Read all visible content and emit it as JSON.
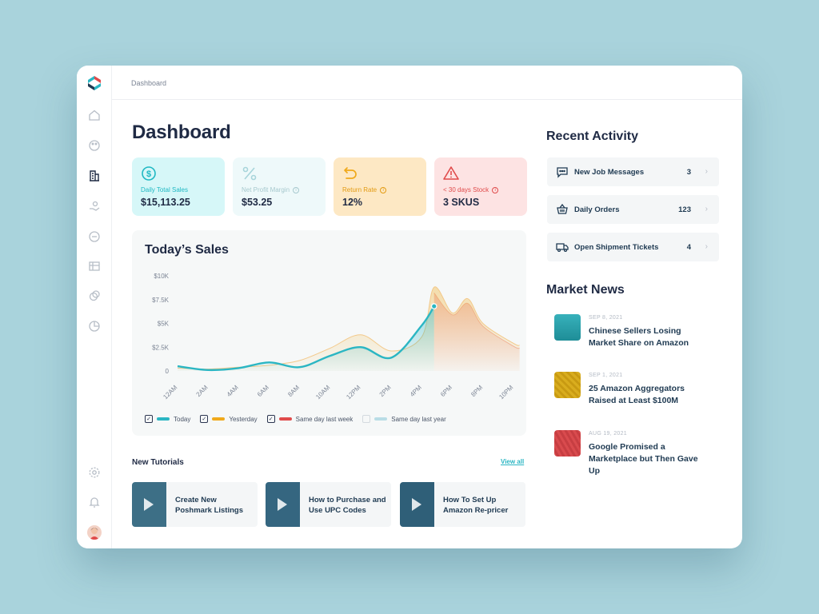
{
  "breadcrumb": "Dashboard",
  "page_title": "Dashboard",
  "kpis": [
    {
      "label": "Daily Total Sales",
      "value": "$15,113.25",
      "icon": "dollar-circle-icon",
      "bg": "#d6f7f8",
      "accent": "#1fb8c3"
    },
    {
      "label": "Net Profit Margin",
      "value": "$53.25",
      "icon": "percent-icon",
      "bg": "#eef9fa",
      "accent": "#a7d4da"
    },
    {
      "label": "Return Rate",
      "value": "12%",
      "icon": "return-arrow-icon",
      "bg": "#fde8c4",
      "accent": "#f0a91b"
    },
    {
      "label": "< 30 days Stock",
      "value": "3 SKUS",
      "icon": "warning-icon",
      "bg": "#fde3e3",
      "accent": "#e04b4b"
    }
  ],
  "sales": {
    "title": "Today’s Sales",
    "legend": [
      {
        "label": "Today",
        "checked": true,
        "color": "#2bb6c3"
      },
      {
        "label": "Yesterday",
        "checked": true,
        "color": "#f0a91b"
      },
      {
        "label": "Same day last week",
        "checked": true,
        "color": "#e04b4b"
      },
      {
        "label": "Same day last year",
        "checked": false,
        "color": "#b9dde6"
      }
    ]
  },
  "chart_data": {
    "type": "area",
    "title": "Today’s Sales",
    "categories": [
      "12AM",
      "2AM",
      "4AM",
      "6AM",
      "8AM",
      "10AM",
      "12PM",
      "2PM",
      "4PM",
      "6PM",
      "8PM",
      "10PM"
    ],
    "y_tick_labels": [
      "0",
      "$2.5K",
      "$5K",
      "$7.5K",
      "$10K"
    ],
    "ylim": [
      0,
      10000
    ],
    "series": [
      {
        "name": "Today",
        "x": [
          0,
          1,
          2,
          3,
          4,
          5,
          6,
          7,
          8,
          8.4
        ],
        "values": [
          500,
          100,
          300,
          900,
          400,
          1600,
          2500,
          1400,
          4800,
          6800
        ]
      },
      {
        "name": "Yesterday",
        "x": [
          0,
          1,
          2,
          3,
          4,
          5,
          6,
          7,
          8,
          8.4,
          9,
          9.5,
          10,
          11,
          11.2
        ],
        "values": [
          300,
          200,
          400,
          600,
          1100,
          2400,
          3800,
          2100,
          3600,
          8800,
          6100,
          7600,
          5000,
          2900,
          2700
        ]
      },
      {
        "name": "Same day last week",
        "x": [
          8.4,
          9,
          9.5,
          10,
          11,
          11.2
        ],
        "values": [
          8200,
          5900,
          7100,
          4700,
          2600,
          2400
        ]
      }
    ]
  },
  "tutorials": {
    "heading": "New Tutorials",
    "view_all": "View all",
    "items": [
      {
        "title": "Create New Poshmark Listings"
      },
      {
        "title": "How to Purchase and Use UPC Codes"
      },
      {
        "title": "How To Set Up Amazon Re-pricer"
      }
    ]
  },
  "recent_activity": {
    "title": "Recent Activity",
    "items": [
      {
        "label": "New Job Messages",
        "count": "3",
        "icon": "message-icon"
      },
      {
        "label": "Daily Orders",
        "count": "123",
        "icon": "basket-icon"
      },
      {
        "label": "Open Shipment Tickets",
        "count": "4",
        "icon": "truck-icon"
      }
    ]
  },
  "market_news": {
    "title": "Market News",
    "items": [
      {
        "date": "SEP 8, 2021",
        "title": "Chinese Sellers Losing Market Share on Amazon",
        "color": "#2aa3ad"
      },
      {
        "date": "SEP 1, 2021",
        "title": "25 Amazon Aggregators Raised at Least $100M",
        "color": "#d7ab1c"
      },
      {
        "date": "AUG 19, 2021",
        "title": "Google Promised a Marketplace but Then Gave Up",
        "color": "#d94b4e"
      }
    ]
  }
}
